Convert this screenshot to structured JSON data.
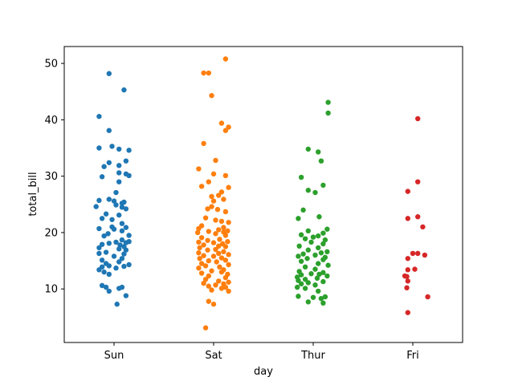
{
  "chart_data": {
    "type": "scatter",
    "subtype": "strip",
    "title": "",
    "xlabel": "day",
    "ylabel": "total_bill",
    "categories": [
      "Sun",
      "Sat",
      "Thur",
      "Fri"
    ],
    "ylim": [
      0.5,
      53
    ],
    "yticks": [
      10,
      20,
      30,
      40,
      50
    ],
    "grid": false,
    "series": [
      {
        "name": "Sun",
        "color": "#1f77b4",
        "values": [
          48.2,
          45.3,
          40.6,
          38.1,
          35.3,
          35.0,
          34.8,
          34.6,
          32.7,
          32.4,
          31.9,
          31.7,
          30.6,
          30.4,
          30.1,
          29.9,
          29.0,
          27.1,
          25.9,
          25.7,
          25.6,
          25.4,
          25.2,
          24.9,
          24.6,
          24.5,
          24.2,
          23.3,
          23.1,
          22.5,
          22.3,
          21.6,
          21.0,
          20.9,
          20.7,
          20.6,
          20.3,
          19.8,
          19.5,
          19.4,
          18.7,
          18.4,
          18.3,
          18.2,
          18.1,
          17.9,
          17.8,
          17.5,
          17.3,
          17.1,
          16.9,
          16.5,
          16.3,
          16.2,
          15.8,
          15.4,
          15.1,
          14.8,
          14.5,
          14.3,
          14.1,
          14.0,
          13.9,
          13.7,
          13.4,
          13.0,
          12.6,
          10.6,
          10.3,
          10.3,
          10.1,
          9.6,
          8.8,
          7.3
        ],
        "jitter": [
          -0.05,
          0.1,
          -0.15,
          -0.05,
          -0.02,
          -0.15,
          0.05,
          0.15,
          0.12,
          -0.05,
          0.05,
          -0.1,
          0.05,
          0.12,
          0.15,
          -0.12,
          0.05,
          0.02,
          -0.05,
          -0.15,
          0.0,
          0.1,
          0.08,
          0.02,
          -0.18,
          0.08,
          0.12,
          -0.08,
          0.05,
          -0.12,
          -0.02,
          0.08,
          -0.02,
          0.12,
          -0.15,
          0.0,
          0.08,
          -0.06,
          0.15,
          -0.1,
          0.08,
          0.15,
          0.02,
          0.12,
          -0.05,
          -0.12,
          0.06,
          0.1,
          -0.15,
          0.05,
          0.12,
          -0.08,
          -0.15,
          0.1,
          0.0,
          0.08,
          -0.12,
          0.05,
          -0.08,
          0.15,
          -0.05,
          0.1,
          -0.12,
          0.02,
          -0.15,
          -0.1,
          -0.05,
          -0.12,
          0.08,
          -0.08,
          0.05,
          -0.05,
          0.12,
          0.03
        ]
      },
      {
        "name": "Sat",
        "color": "#ff7f0e",
        "values": [
          50.8,
          48.3,
          48.3,
          44.3,
          39.4,
          38.7,
          38.1,
          35.8,
          32.8,
          31.3,
          30.4,
          30.1,
          29.0,
          28.2,
          28.0,
          27.2,
          26.6,
          26.4,
          25.9,
          25.6,
          24.6,
          24.2,
          24.1,
          23.7,
          22.6,
          22.2,
          22.0,
          21.8,
          21.2,
          20.9,
          20.7,
          20.5,
          20.3,
          20.2,
          20.1,
          20.0,
          19.8,
          19.5,
          19.1,
          18.8,
          18.6,
          18.4,
          18.3,
          18.2,
          18.0,
          17.8,
          17.6,
          17.5,
          17.3,
          17.0,
          16.9,
          16.6,
          16.4,
          16.3,
          16.1,
          15.9,
          15.8,
          15.5,
          15.4,
          15.1,
          15.0,
          14.8,
          14.5,
          14.3,
          14.1,
          13.9,
          13.7,
          13.4,
          13.2,
          13.0,
          12.8,
          12.6,
          12.3,
          12.0,
          11.7,
          11.4,
          11.2,
          11.0,
          10.9,
          10.7,
          10.5,
          10.3,
          10.1,
          9.8,
          9.6,
          7.8,
          7.3,
          3.1
        ],
        "jitter": [
          0.12,
          -0.05,
          -0.1,
          -0.02,
          0.08,
          0.15,
          0.12,
          -0.1,
          0.02,
          -0.15,
          0.0,
          0.12,
          -0.05,
          -0.12,
          0.15,
          0.08,
          0.05,
          -0.02,
          0.1,
          0.0,
          -0.02,
          -0.06,
          0.04,
          0.12,
          -0.08,
          0.02,
          0.08,
          0.15,
          -0.12,
          0.1,
          -0.15,
          0.05,
          0.14,
          -0.05,
          0.1,
          -0.16,
          0.02,
          0.12,
          -0.12,
          0.06,
          -0.06,
          0.14,
          -0.15,
          0.0,
          0.09,
          -0.1,
          0.05,
          0.12,
          -0.14,
          0.02,
          -0.06,
          0.1,
          -0.15,
          0.05,
          0.15,
          -0.1,
          0.0,
          0.08,
          -0.14,
          0.12,
          -0.05,
          0.03,
          -0.12,
          0.15,
          -0.08,
          0.06,
          -0.15,
          0.1,
          -0.02,
          0.08,
          -0.12,
          0.14,
          -0.05,
          0.12,
          -0.08,
          0.05,
          0.15,
          -0.1,
          0.1,
          0.02,
          -0.05,
          0.12,
          0.08,
          -0.02,
          0.15,
          -0.05,
          0.0,
          -0.08
        ]
      },
      {
        "name": "Thur",
        "color": "#2ca02c",
        "values": [
          43.1,
          41.2,
          34.8,
          34.3,
          32.7,
          29.8,
          28.4,
          27.5,
          27.1,
          24.0,
          22.8,
          22.5,
          20.6,
          20.3,
          19.9,
          19.6,
          19.4,
          19.2,
          18.9,
          18.7,
          18.3,
          18.0,
          17.6,
          17.3,
          16.9,
          16.6,
          16.4,
          16.2,
          16.0,
          15.8,
          15.6,
          15.4,
          15.2,
          14.9,
          14.5,
          14.2,
          13.9,
          13.5,
          13.1,
          12.9,
          12.7,
          12.6,
          12.5,
          12.3,
          12.1,
          11.9,
          11.7,
          11.5,
          11.3,
          11.1,
          10.9,
          10.7,
          10.3,
          10.1,
          9.6,
          8.7,
          8.6,
          8.5,
          8.3,
          7.7,
          7.5
        ],
        "jitter": [
          0.15,
          0.15,
          -0.05,
          0.05,
          0.08,
          -0.12,
          0.1,
          -0.05,
          0.02,
          -0.1,
          0.06,
          -0.15,
          0.14,
          -0.05,
          0.1,
          -0.12,
          0.05,
          0.0,
          -0.08,
          0.12,
          -0.02,
          0.1,
          -0.14,
          0.05,
          -0.05,
          0.14,
          0.08,
          -0.1,
          0.02,
          -0.15,
          0.12,
          -0.06,
          0.1,
          -0.12,
          0.05,
          0.15,
          -0.08,
          0.02,
          -0.14,
          0.1,
          -0.02,
          0.06,
          -0.12,
          0.14,
          -0.16,
          0.04,
          -0.08,
          -0.15,
          0.1,
          -0.05,
          -0.12,
          0.02,
          -0.16,
          -0.08,
          0.05,
          -0.15,
          0.12,
          0.0,
          0.08,
          -0.05,
          0.1
        ]
      },
      {
        "name": "Fri",
        "color": "#d62728",
        "values": [
          40.2,
          29.0,
          27.3,
          22.8,
          22.5,
          21.0,
          16.3,
          16.3,
          16.0,
          15.4,
          13.5,
          13.4,
          12.3,
          12.2,
          11.4,
          10.2,
          8.6,
          5.8
        ],
        "jitter": [
          0.05,
          0.05,
          -0.05,
          0.05,
          -0.05,
          0.1,
          0.0,
          0.05,
          0.12,
          -0.05,
          0.02,
          -0.05,
          -0.08,
          -0.06,
          -0.05,
          -0.06,
          0.15,
          -0.05
        ]
      }
    ]
  }
}
